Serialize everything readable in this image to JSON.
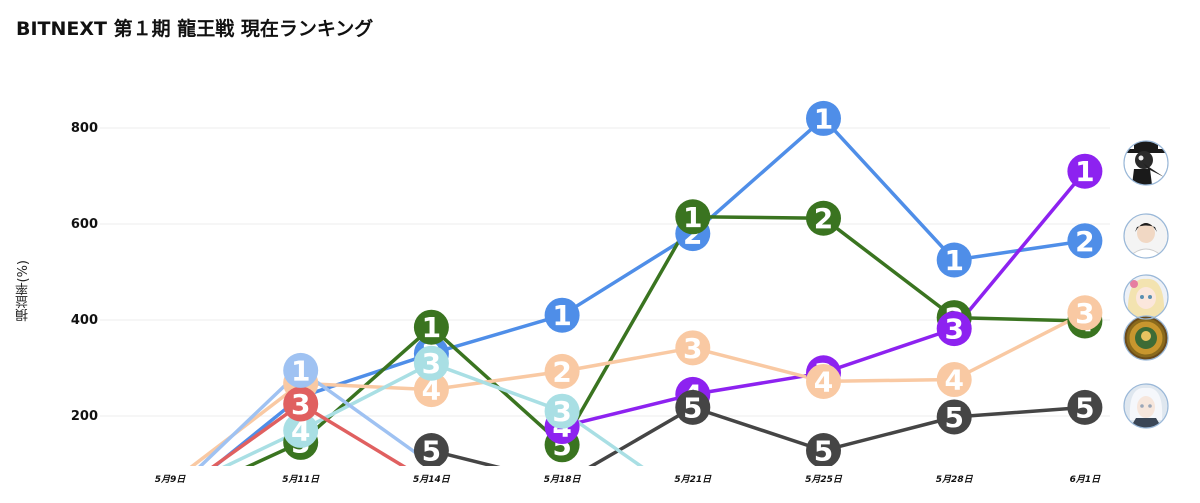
{
  "page": {
    "title": "BITNEXT 第１期 龍王戦 現在ランキング"
  },
  "chart_data": {
    "type": "line",
    "title": "BITNEXT 第１期 龍王戦 現在ランキング",
    "ylabel": "損益率(%)",
    "xlabel": "",
    "x": [
      "5月9日",
      "5月11日",
      "5月14日",
      "5月18日",
      "5月21日",
      "5月25日",
      "5月28日",
      "6月1日"
    ],
    "yticks": [
      200,
      400,
      600,
      800
    ],
    "ylim": [
      100,
      880
    ],
    "grid": true,
    "series": [
      {
        "color": "#4f8ee8",
        "values": [
          20,
          240,
          330,
          410,
          580,
          820,
          525,
          565
        ],
        "ranks": [
          null,
          null,
          2,
          1,
          2,
          1,
          1,
          2
        ]
      },
      {
        "color": "#3a7420",
        "values": [
          20,
          145,
          385,
          140,
          615,
          612,
          405,
          398
        ],
        "ranks": [
          null,
          5,
          1,
          5,
          1,
          2,
          2,
          4
        ]
      },
      {
        "color": "#8d22f0",
        "values": [
          null,
          null,
          null,
          178,
          245,
          290,
          382,
          710
        ],
        "ranks": [
          null,
          null,
          null,
          4,
          4,
          3,
          3,
          1
        ]
      },
      {
        "color": "#f9c9a3",
        "values": [
          60,
          268,
          255,
          293,
          342,
          272,
          276,
          415
        ],
        "ranks": [
          null,
          2,
          4,
          2,
          3,
          4,
          4,
          3
        ]
      },
      {
        "color": "#454545",
        "values": [
          null,
          null,
          128,
          60,
          218,
          128,
          198,
          218
        ],
        "ranks": [
          null,
          null,
          5,
          null,
          5,
          5,
          5,
          5
        ]
      },
      {
        "color": "#a9dfe4",
        "values": [
          40,
          170,
          310,
          210,
          20,
          null,
          null,
          null
        ],
        "ranks": [
          null,
          4,
          3,
          3,
          null,
          null,
          null,
          null
        ]
      },
      {
        "color": "#e06060",
        "values": [
          30,
          225,
          60,
          null,
          null,
          null,
          null,
          null
        ],
        "ranks": [
          null,
          3,
          null,
          null,
          null,
          null,
          null,
          null
        ]
      },
      {
        "color": "#9fc2f2",
        "values": [
          35,
          295,
          100,
          null,
          null,
          null,
          null,
          null
        ],
        "ranks": [
          null,
          1,
          null,
          null,
          null,
          null,
          null,
          null
        ]
      }
    ],
    "avatars": [
      "plague-doctor-avatar",
      "dark-hair-boy-avatar",
      "blonde-girl-avatar",
      "gold-badge-avatar",
      "white-hair-avatar"
    ]
  }
}
